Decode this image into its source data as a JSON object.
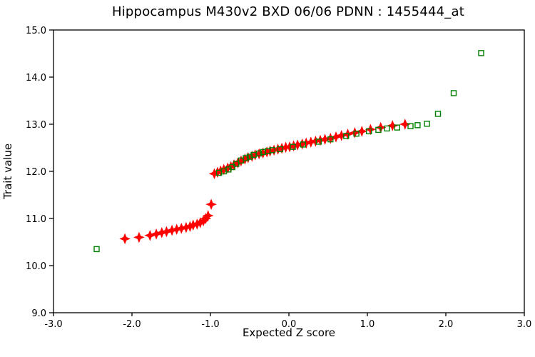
{
  "figure": {
    "kind": "probability-plot-screenshot",
    "background_color": "#ffffff",
    "frame_color": "#000000"
  },
  "chart_data": {
    "type": "scatter",
    "title": "Hippocampus M430v2 BXD 06/06 PDNN : 1455444_at",
    "xlabel": "Expected Z score",
    "ylabel": "Trait value",
    "xlim": [
      -3.0,
      3.0
    ],
    "ylim": [
      9.0,
      15.0
    ],
    "grid": false,
    "legend": "none",
    "x_ticks": [
      -3.0,
      -2.0,
      -1.0,
      0.0,
      1.0,
      2.0,
      3.0
    ],
    "x_tick_labels": [
      "-3.0",
      "-2.0",
      "-1.0",
      "0.0",
      "1.0",
      "2.0",
      "3.0"
    ],
    "y_ticks": [
      9.0,
      10.0,
      11.0,
      12.0,
      13.0,
      14.0,
      15.0
    ],
    "y_tick_labels": [
      "9.0",
      "10.0",
      "11.0",
      "12.0",
      "13.0",
      "14.0",
      "15.0"
    ],
    "series": [
      {
        "name": "trait-values-red",
        "marker": "filled-diamond",
        "color": "#ff0000",
        "marker_size": 13,
        "points": [
          [
            -2.09,
            10.57
          ],
          [
            -1.91,
            10.6
          ],
          [
            -1.77,
            10.64
          ],
          [
            -1.69,
            10.67
          ],
          [
            -1.62,
            10.7
          ],
          [
            -1.56,
            10.72
          ],
          [
            -1.49,
            10.75
          ],
          [
            -1.43,
            10.77
          ],
          [
            -1.37,
            10.79
          ],
          [
            -1.31,
            10.81
          ],
          [
            -1.26,
            10.83
          ],
          [
            -1.22,
            10.86
          ],
          [
            -1.17,
            10.88
          ],
          [
            -1.13,
            10.91
          ],
          [
            -1.09,
            10.95
          ],
          [
            -1.06,
            11.0
          ],
          [
            -1.03,
            11.06
          ],
          [
            -0.99,
            11.3
          ],
          [
            -0.95,
            11.95
          ],
          [
            -0.91,
            11.98
          ],
          [
            -0.87,
            12.01
          ],
          [
            -0.83,
            12.04
          ],
          [
            -0.78,
            12.07
          ],
          [
            -0.74,
            12.1
          ],
          [
            -0.7,
            12.14
          ],
          [
            -0.65,
            12.18
          ],
          [
            -0.61,
            12.22
          ],
          [
            -0.56,
            12.26
          ],
          [
            -0.52,
            12.29
          ],
          [
            -0.47,
            12.32
          ],
          [
            -0.43,
            12.35
          ],
          [
            -0.38,
            12.37
          ],
          [
            -0.33,
            12.39
          ],
          [
            -0.28,
            12.41
          ],
          [
            -0.24,
            12.43
          ],
          [
            -0.19,
            12.45
          ],
          [
            -0.14,
            12.47
          ],
          [
            -0.09,
            12.49
          ],
          [
            -0.04,
            12.51
          ],
          [
            0.01,
            12.52
          ],
          [
            0.06,
            12.54
          ],
          [
            0.11,
            12.56
          ],
          [
            0.17,
            12.58
          ],
          [
            0.22,
            12.6
          ],
          [
            0.28,
            12.62
          ],
          [
            0.34,
            12.64
          ],
          [
            0.4,
            12.66
          ],
          [
            0.46,
            12.68
          ],
          [
            0.53,
            12.7
          ],
          [
            0.6,
            12.73
          ],
          [
            0.67,
            12.76
          ],
          [
            0.75,
            12.79
          ],
          [
            0.84,
            12.82
          ],
          [
            0.93,
            12.85
          ],
          [
            1.04,
            12.89
          ],
          [
            1.17,
            12.93
          ],
          [
            1.32,
            12.97
          ],
          [
            1.48,
            13.0
          ]
        ]
      },
      {
        "name": "trait-values-green",
        "marker": "open-square",
        "color": "#008000",
        "marker_size": 7,
        "points": [
          [
            -2.45,
            10.35
          ],
          [
            -0.89,
            11.97
          ],
          [
            -0.83,
            12.0
          ],
          [
            -0.77,
            12.04
          ],
          [
            -0.72,
            12.09
          ],
          [
            -0.67,
            12.16
          ],
          [
            -0.61,
            12.23
          ],
          [
            -0.55,
            12.28
          ],
          [
            -0.5,
            12.31
          ],
          [
            -0.45,
            12.35
          ],
          [
            -0.38,
            12.38
          ],
          [
            -0.33,
            12.41
          ],
          [
            -0.27,
            12.43
          ],
          [
            -0.21,
            12.45
          ],
          [
            -0.11,
            12.47
          ],
          [
            0.05,
            12.52
          ],
          [
            0.18,
            12.57
          ],
          [
            0.38,
            12.63
          ],
          [
            0.53,
            12.68
          ],
          [
            0.73,
            12.75
          ],
          [
            0.86,
            12.8
          ],
          [
            1.02,
            12.85
          ],
          [
            1.14,
            12.88
          ],
          [
            1.25,
            12.91
          ],
          [
            1.38,
            12.93
          ],
          [
            1.55,
            12.96
          ],
          [
            1.64,
            12.98
          ],
          [
            1.76,
            13.01
          ],
          [
            1.9,
            13.22
          ],
          [
            2.1,
            13.66
          ],
          [
            2.45,
            14.51
          ]
        ]
      }
    ]
  }
}
